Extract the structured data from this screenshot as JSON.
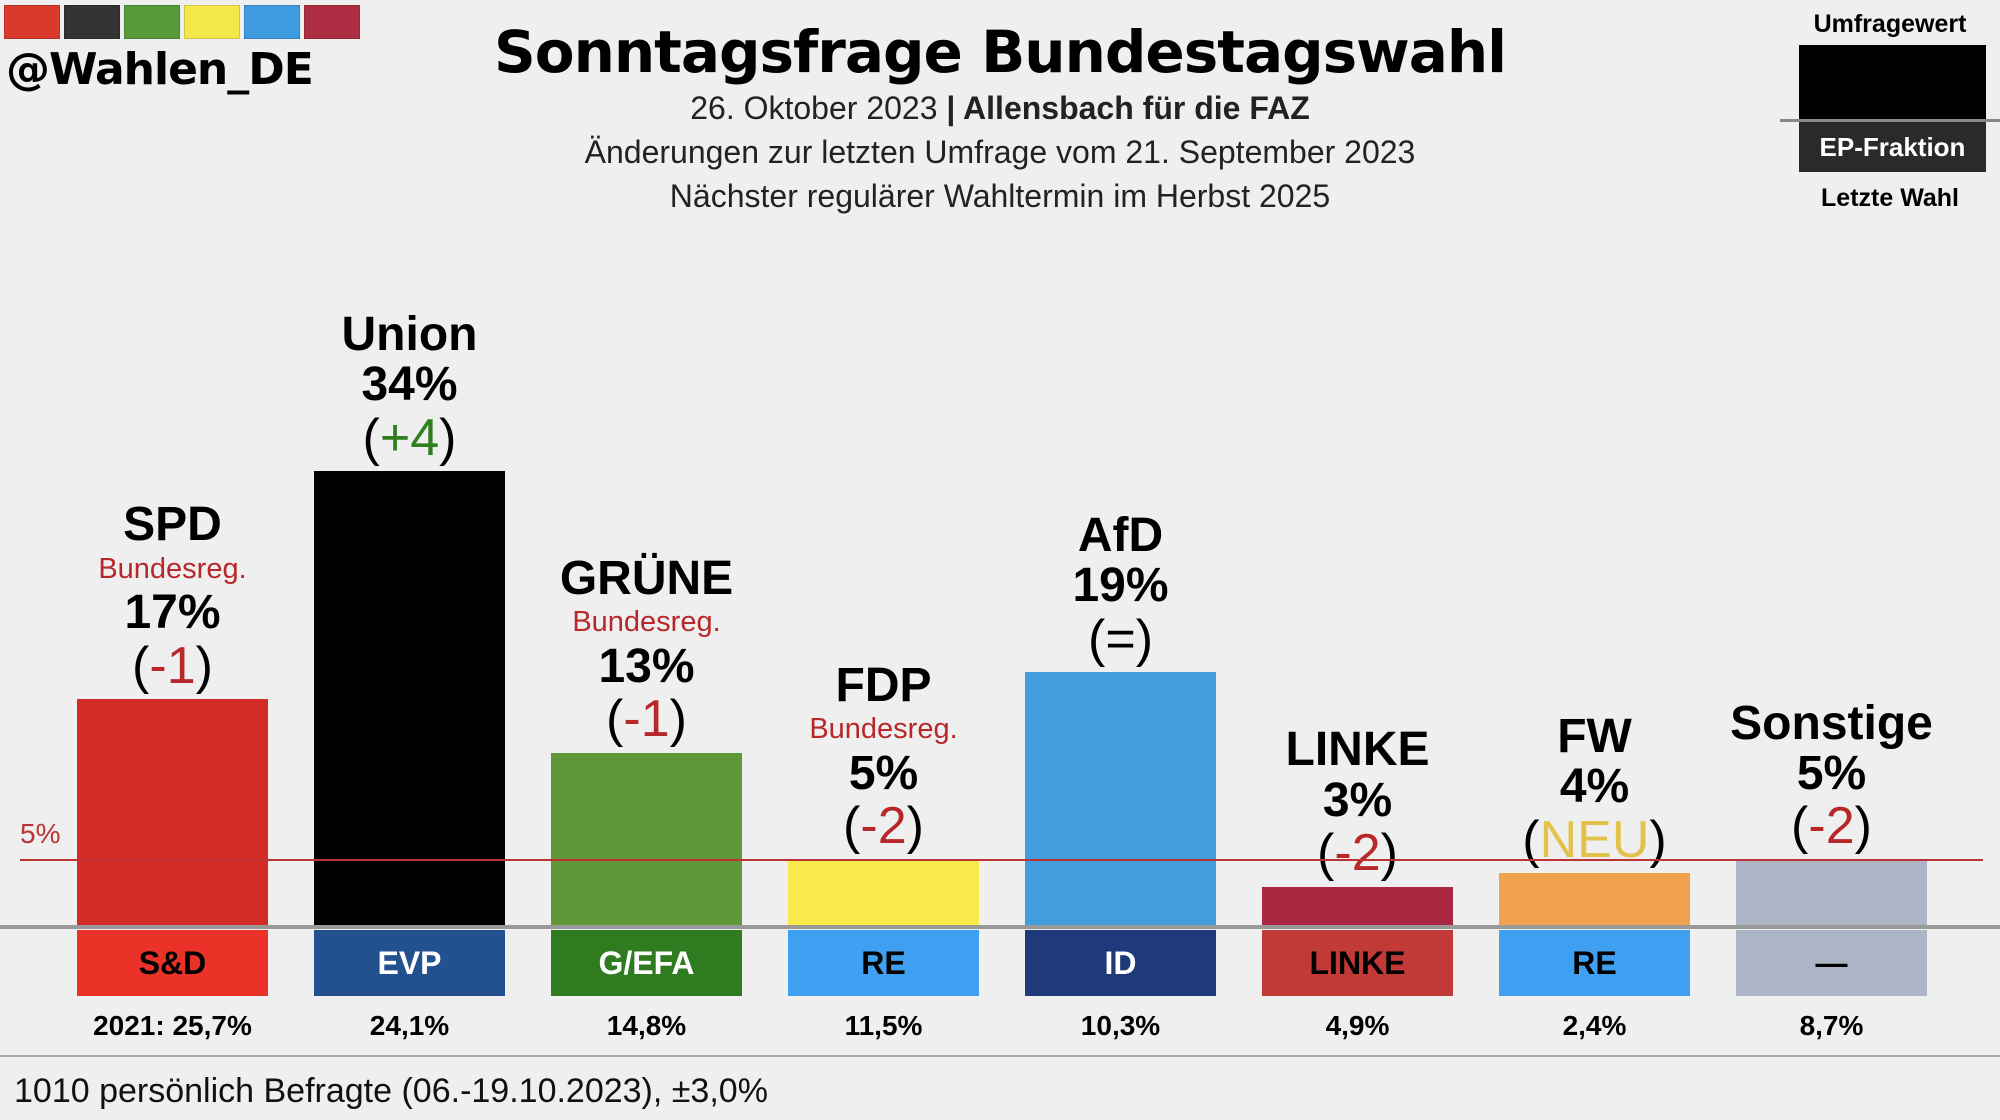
{
  "brand": {
    "handle": "@Wahlen_DE",
    "colors": [
      "#d93a2b",
      "#333333",
      "#569a3a",
      "#f5e84a",
      "#3f9be0",
      "#ad2e42"
    ]
  },
  "header": {
    "title": "Sonntagsfrage Bundestagswahl",
    "date": "26. Oktober 2023",
    "separator": " | ",
    "source": "Allensbach für die FAZ",
    "change_note": "Änderungen zur letzten Umfrage vom 21. September 2023",
    "next_election": "Nächster regulärer Wahltermin im Herbst 2025"
  },
  "legend": {
    "poll_value": "Umfragewert",
    "ep_group": "EP-Fraktion",
    "last_election": "Letzte Wahl"
  },
  "chart_data": {
    "type": "bar",
    "title": "Sonntagsfrage Bundestagswahl",
    "threshold": {
      "value": 5,
      "label": "5%"
    },
    "ylim": [
      0,
      34
    ],
    "categories": [
      "SPD",
      "Union",
      "GRÜNE",
      "FDP",
      "AfD",
      "LINKE",
      "FW",
      "Sonstige"
    ],
    "values": [
      17,
      34,
      13,
      5,
      19,
      3,
      4,
      5
    ],
    "value_labels": [
      "17%",
      "34%",
      "13%",
      "5%",
      "19%",
      "3%",
      "4%",
      "5%"
    ],
    "changes": [
      "(-1)",
      "(+4)",
      "(-1)",
      "(-2)",
      "(=)",
      "(-2)",
      "(NEU)",
      "(-2)"
    ],
    "change_types": [
      "neg",
      "pos",
      "neg",
      "neg",
      "eq",
      "neg",
      "new",
      "neg"
    ],
    "government": [
      "Bundesreg.",
      "",
      "Bundesreg.",
      "Bundesreg.",
      "",
      "",
      "",
      ""
    ],
    "bar_colors": [
      "#d42b27",
      "#000000",
      "#5f9638",
      "#f8ea4b",
      "#429ddc",
      "#a8283f",
      "#f0a24c",
      "#abb5c5"
    ],
    "ep_groups": [
      "S&D",
      "EVP",
      "G/EFA",
      "RE",
      "ID",
      "LINKE",
      "RE",
      "—"
    ],
    "ep_colors": [
      "#ea3229",
      "#23518f",
      "#2f7b1f",
      "#3fa0f2",
      "#1f3a7b",
      "#c23a38",
      "#3fa0f2",
      "#abb5c5"
    ],
    "ep_text_colors": [
      "#000",
      "#fff",
      "#fff",
      "#000",
      "#fff",
      "#000",
      "#000",
      "#000"
    ],
    "last_election": [
      "2021: 25,7%",
      "24,1%",
      "14,8%",
      "11,5%",
      "10,3%",
      "4,9%",
      "2,4%",
      "8,7%"
    ]
  },
  "footer": {
    "sample": "1010 persönlich Befragte (06.-19.10.2023), ±3,0%"
  }
}
